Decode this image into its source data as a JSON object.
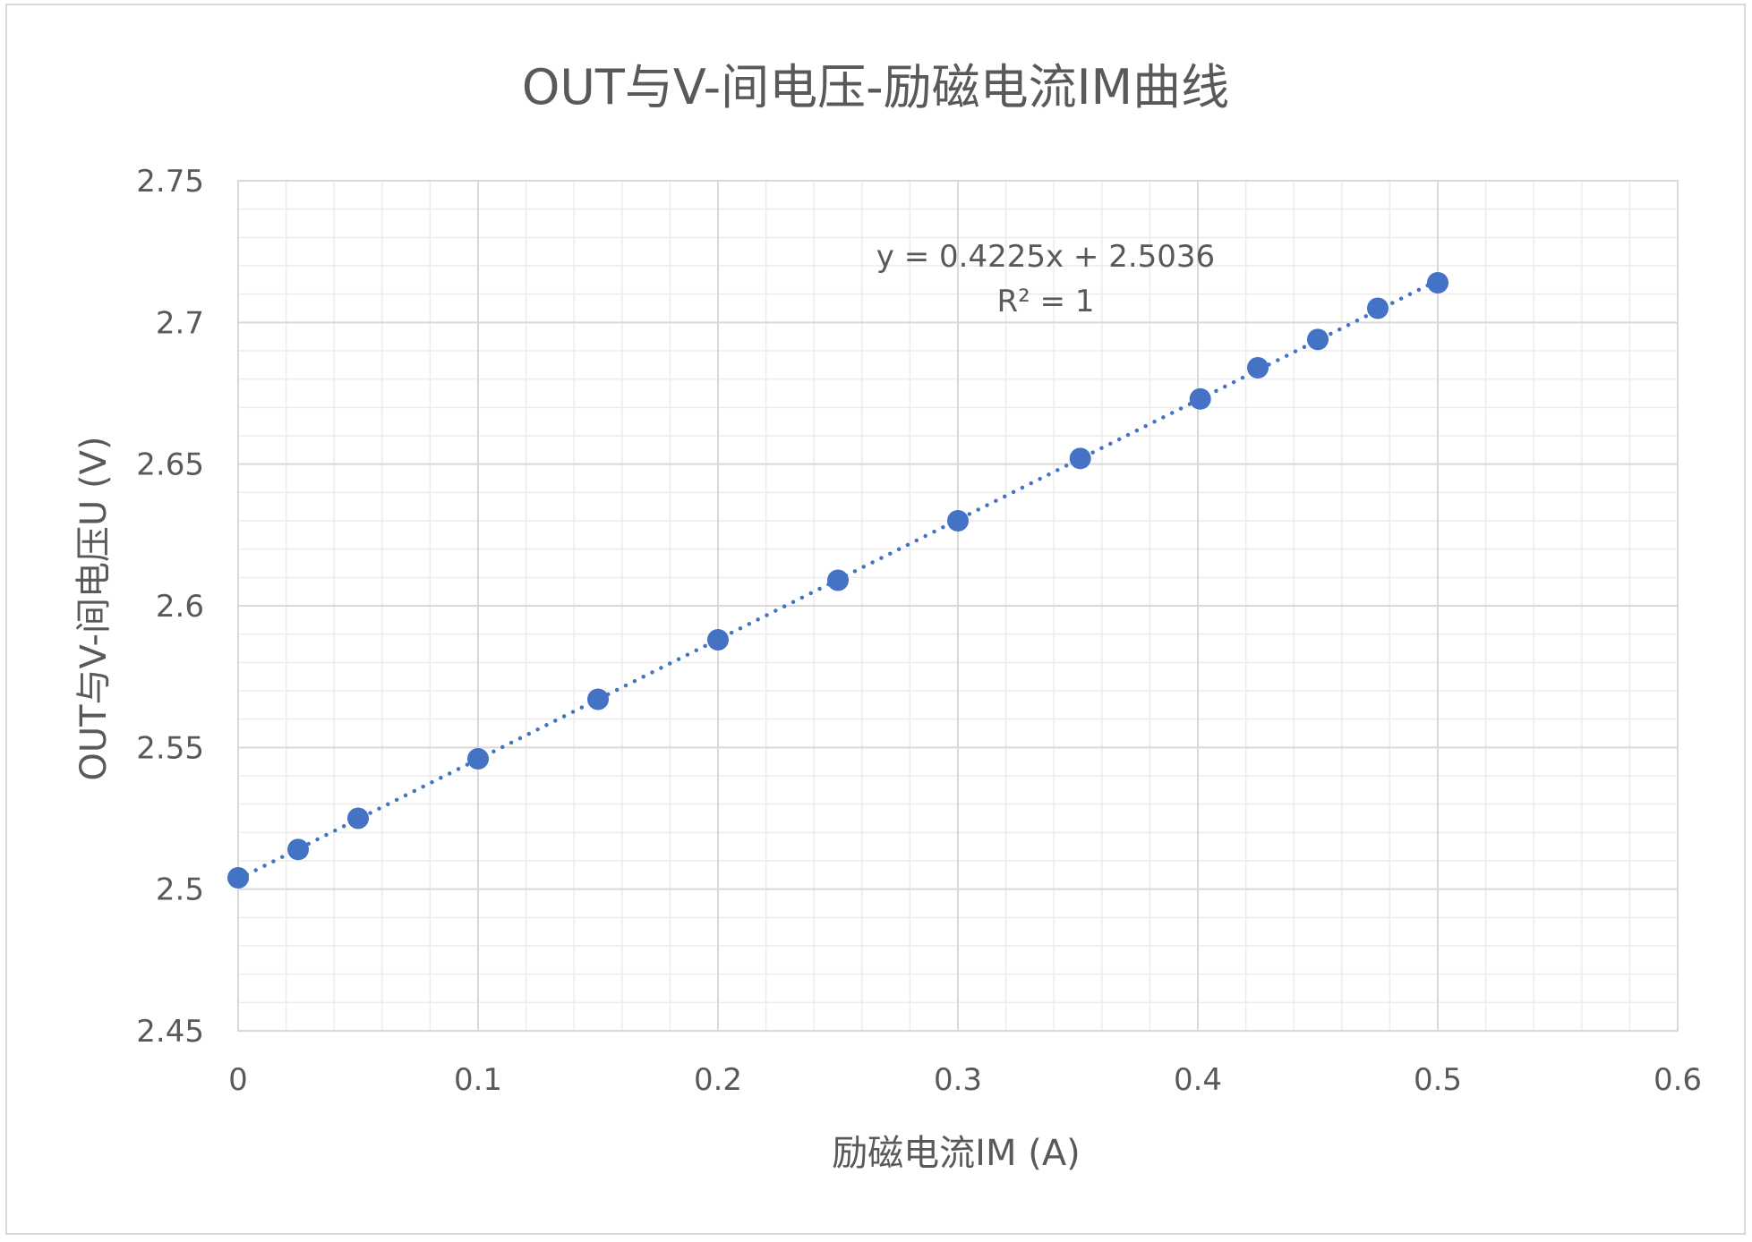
{
  "chart_data": {
    "type": "scatter",
    "title": "OUT与V-间电压-励磁电流IM曲线",
    "xlabel": "励磁电流IM (A)",
    "ylabel": "OUT与V-间电压U (V)",
    "xlim": [
      0,
      0.6
    ],
    "ylim": [
      2.45,
      2.75
    ],
    "x_ticks": [
      "0",
      "0.1",
      "0.2",
      "0.3",
      "0.4",
      "0.5",
      "0.6"
    ],
    "y_ticks": [
      "2.45",
      "2.5",
      "2.55",
      "2.6",
      "2.65",
      "2.7",
      "2.75"
    ],
    "grid": true,
    "legend": "none",
    "series": [
      {
        "color": "#4472c4",
        "points": [
          {
            "x": 0,
            "y": 2.504
          },
          {
            "x": 0.025,
            "y": 2.514
          },
          {
            "x": 0.05,
            "y": 2.525
          },
          {
            "x": 0.1,
            "y": 2.546
          },
          {
            "x": 0.15,
            "y": 2.567
          },
          {
            "x": 0.2,
            "y": 2.588
          },
          {
            "x": 0.25,
            "y": 2.609
          },
          {
            "x": 0.3,
            "y": 2.63
          },
          {
            "x": 0.351,
            "y": 2.652
          },
          {
            "x": 0.401,
            "y": 2.673
          },
          {
            "x": 0.425,
            "y": 2.684
          },
          {
            "x": 0.45,
            "y": 2.694
          },
          {
            "x": 0.475,
            "y": 2.705
          },
          {
            "x": 0.5,
            "y": 2.714
          }
        ]
      }
    ],
    "trendline": {
      "type": "linear",
      "slope": 0.4225,
      "intercept": 2.5036,
      "style": "dotted",
      "color": "#4472c4",
      "equation_label": "y = 0.4225x + 2.5036",
      "r2_label": "R² = 1"
    }
  }
}
